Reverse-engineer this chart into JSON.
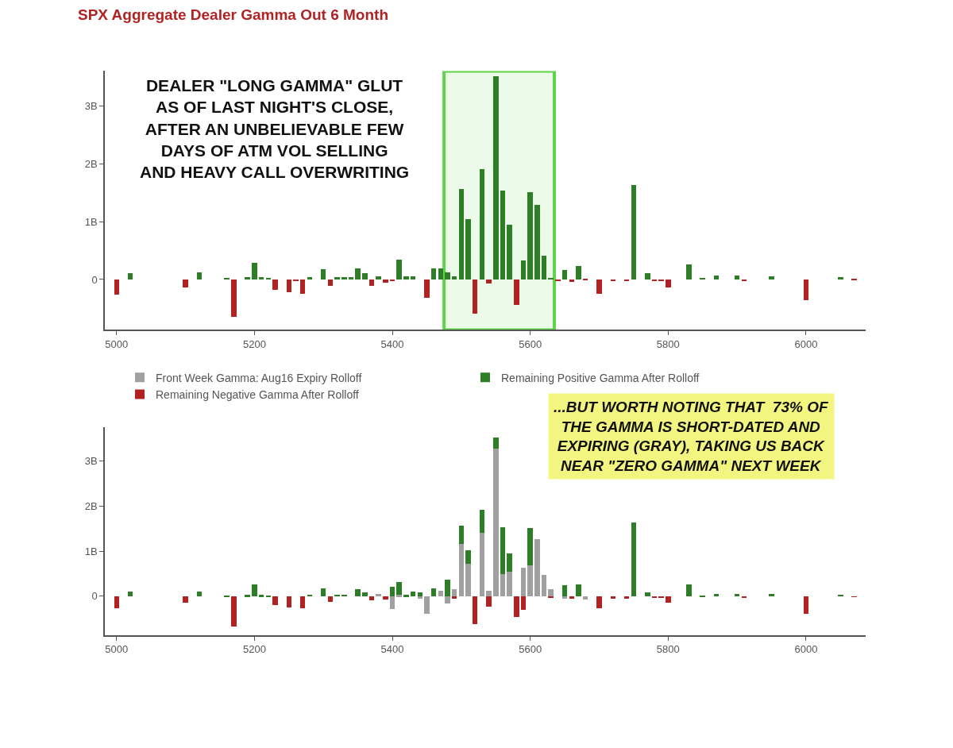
{
  "chart_data": [
    {
      "type": "bar",
      "title": "SPX Aggregate Dealer Gamma Out 6 Month",
      "stacked": true,
      "legend": false,
      "grid": false,
      "x": [
        5000,
        5020,
        5100,
        5120,
        5160,
        5170,
        5190,
        5200,
        5210,
        5220,
        5230,
        5250,
        5260,
        5270,
        5280,
        5300,
        5310,
        5320,
        5330,
        5340,
        5350,
        5360,
        5370,
        5380,
        5390,
        5400,
        5410,
        5420,
        5430,
        5450,
        5460,
        5470,
        5480,
        5490,
        5500,
        5510,
        5520,
        5530,
        5540,
        5550,
        5560,
        5570,
        5580,
        5590,
        5600,
        5610,
        5620,
        5630,
        5640,
        5650,
        5660,
        5670,
        5680,
        5700,
        5720,
        5740,
        5750,
        5770,
        5780,
        5790,
        5800,
        5830,
        5850,
        5870,
        5900,
        5910,
        5950,
        6000,
        6050,
        6070
      ],
      "xlim": [
        4983,
        6086
      ],
      "xticks": [
        5000,
        5200,
        5400,
        5600,
        5800,
        6000
      ],
      "ylim": [
        -0.87,
        3.6
      ],
      "yticks": [
        0,
        {
          "value": 1,
          "label": "1B"
        },
        {
          "value": 2,
          "label": "2B"
        },
        {
          "value": 3,
          "label": "3B"
        }
      ],
      "annotations": [
        "DEALER \"LONG GAMMA\" GLUT AS OF LAST NIGHT'S CLOSE, AFTER AN UNBELIEVABLE FEW DAYS OF ATM VOL SELLING AND HEAVY CALL OVERWRITING"
      ],
      "bands": [
        {
          "axis": "x",
          "from": 5475,
          "to": 5635,
          "color": "#5fd34a"
        }
      ],
      "series": [
        {
          "color": "#2e7d27",
          "values": [
            null,
            0.1,
            null,
            0.12,
            0.02,
            null,
            0.03,
            0.28,
            0.03,
            0.02,
            null,
            null,
            null,
            null,
            0.04,
            0.17,
            null,
            0.04,
            0.04,
            0.04,
            0.18,
            0.1,
            null,
            0.05,
            null,
            null,
            0.33,
            0.05,
            0.05,
            null,
            0.19,
            0.19,
            0.12,
            0.05,
            1.55,
            1.03,
            null,
            1.9,
            null,
            3.51,
            1.53,
            0.94,
            null,
            0.32,
            1.5,
            1.28,
            0.4,
            0.02,
            null,
            0.16,
            null,
            0.22,
            null,
            null,
            null,
            null,
            1.63,
            0.1,
            null,
            null,
            null,
            0.26,
            0.02,
            0.06,
            0.06,
            null,
            0.05,
            null,
            0.04,
            null
          ]
        },
        {
          "color": "#b22222",
          "values": [
            -0.27,
            null,
            -0.14,
            null,
            null,
            -0.65,
            null,
            null,
            null,
            null,
            -0.19,
            -0.23,
            -0.03,
            -0.26,
            null,
            null,
            -0.12,
            null,
            null,
            null,
            null,
            null,
            -0.12,
            null,
            -0.06,
            -0.03,
            null,
            null,
            null,
            -0.32,
            null,
            null,
            null,
            null,
            null,
            null,
            -0.59,
            null,
            -0.08,
            null,
            null,
            null,
            -0.44,
            null,
            null,
            null,
            null,
            null,
            -0.03,
            null,
            -0.05,
            null,
            -0.02,
            -0.25,
            -0.04,
            -0.04,
            null,
            null,
            -0.03,
            -0.03,
            -0.14,
            null,
            null,
            null,
            null,
            -0.03,
            null,
            -0.37,
            null,
            -0.02
          ]
        }
      ]
    },
    {
      "type": "bar",
      "stacked": true,
      "legend": "top",
      "grid": false,
      "x": [
        5000,
        5020,
        5100,
        5120,
        5160,
        5170,
        5190,
        5200,
        5210,
        5220,
        5230,
        5250,
        5270,
        5280,
        5300,
        5310,
        5320,
        5330,
        5350,
        5360,
        5370,
        5380,
        5390,
        5400,
        5410,
        5420,
        5430,
        5440,
        5450,
        5460,
        5470,
        5480,
        5490,
        5500,
        5510,
        5520,
        5530,
        5540,
        5550,
        5560,
        5570,
        5580,
        5590,
        5600,
        5610,
        5620,
        5630,
        5650,
        5660,
        5670,
        5680,
        5700,
        5720,
        5740,
        5750,
        5770,
        5780,
        5790,
        5800,
        5830,
        5850,
        5870,
        5900,
        5910,
        5950,
        6000,
        6050,
        6070
      ],
      "xlim": [
        4983,
        6086
      ],
      "xticks": [
        5000,
        5200,
        5400,
        5600,
        5800,
        6000
      ],
      "ylim": [
        -0.86,
        3.75
      ],
      "yticks": [
        0,
        {
          "value": 1,
          "label": "1B"
        },
        {
          "value": 2,
          "label": "2B"
        },
        {
          "value": 3,
          "label": "3B"
        }
      ],
      "annotations": [
        "...BUT WORTH NOTING THAT  73% OF THE GAMMA IS SHORT-DATED AND EXPIRING (GRAY), TAKING US BACK NEAR \"ZERO GAMMA\" NEXT WEEK"
      ],
      "series": [
        {
          "name": "Front Week Gamma: Aug16 Expiry Rolloff",
          "color": "#a0a0a0",
          "values": [
            null,
            null,
            null,
            null,
            null,
            null,
            null,
            null,
            null,
            null,
            null,
            null,
            null,
            null,
            null,
            null,
            null,
            null,
            null,
            null,
            null,
            0.05,
            null,
            -0.28,
            0.03,
            null,
            null,
            -0.05,
            -0.39,
            null,
            0.13,
            -0.16,
            0.16,
            1.16,
            0.73,
            null,
            1.41,
            0.13,
            3.27,
            0.49,
            0.54,
            null,
            0.64,
            0.69,
            1.27,
            0.47,
            0.16,
            -0.05,
            null,
            null,
            -0.07,
            null,
            null,
            null,
            null,
            null,
            null,
            null,
            null,
            null,
            null,
            null,
            null,
            null,
            null,
            null,
            null,
            null
          ]
        },
        {
          "name": "Remaining Positive Gamma After Rolloff",
          "color": "#2e7d27",
          "values": [
            null,
            0.1,
            null,
            0.1,
            0.02,
            null,
            0.03,
            0.26,
            0.03,
            0.02,
            null,
            null,
            null,
            0.04,
            0.17,
            null,
            0.04,
            0.04,
            0.16,
            0.08,
            null,
            null,
            null,
            0.21,
            0.29,
            0.03,
            0.1,
            0.08,
            null,
            0.18,
            null,
            0.37,
            null,
            0.41,
            0.29,
            null,
            0.51,
            null,
            0.26,
            1.05,
            0.41,
            null,
            null,
            0.82,
            null,
            null,
            null,
            0.24,
            null,
            0.27,
            null,
            null,
            null,
            null,
            1.63,
            0.08,
            null,
            null,
            null,
            0.26,
            0.02,
            0.05,
            0.06,
            null,
            0.05,
            null,
            0.04,
            null
          ]
        },
        {
          "name": "Remaining Negative Gamma After Rolloff",
          "color": "#b22222",
          "values": [
            -0.27,
            null,
            -0.14,
            null,
            null,
            -0.67,
            null,
            null,
            null,
            null,
            -0.2,
            -0.24,
            -0.26,
            null,
            null,
            -0.12,
            null,
            null,
            null,
            null,
            -0.08,
            null,
            -0.07,
            null,
            null,
            null,
            null,
            null,
            null,
            null,
            null,
            null,
            -0.05,
            null,
            null,
            -0.62,
            null,
            -0.23,
            null,
            null,
            null,
            -0.46,
            -0.3,
            null,
            null,
            null,
            -0.03,
            null,
            -0.05,
            null,
            null,
            -0.26,
            -0.05,
            -0.05,
            null,
            null,
            -0.04,
            -0.04,
            -0.14,
            null,
            null,
            null,
            null,
            -0.04,
            null,
            -0.38,
            null,
            -0.01
          ]
        }
      ]
    }
  ]
}
